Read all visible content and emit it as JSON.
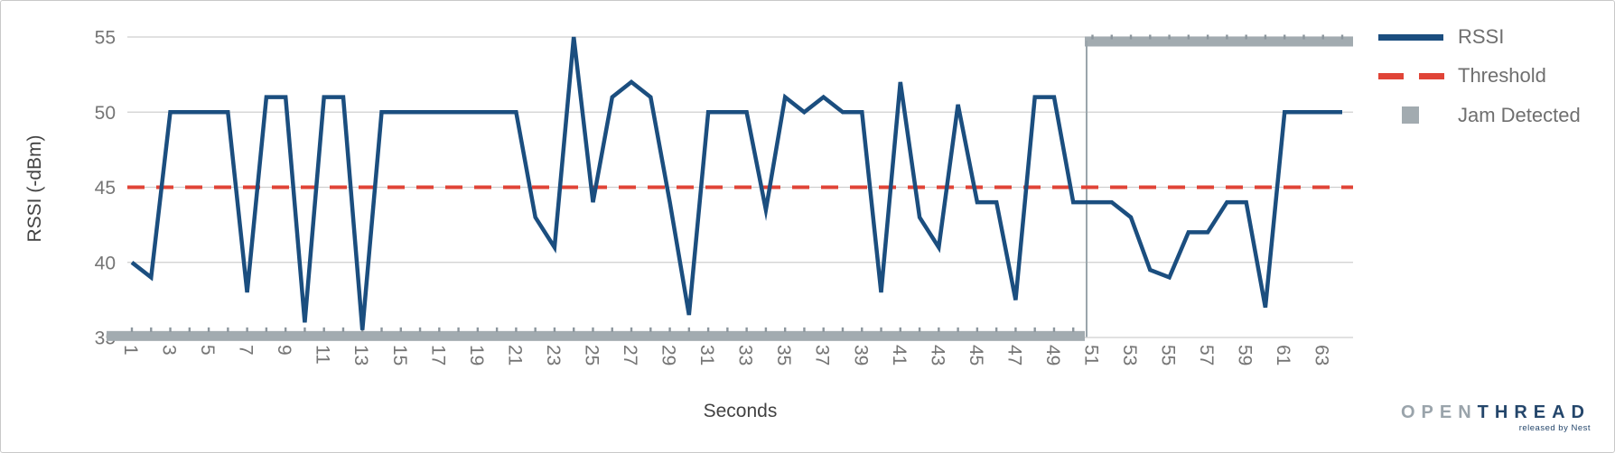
{
  "chart_data": {
    "type": "line",
    "xlabel": "Seconds",
    "ylabel": "RSSI (-dBm)",
    "ylim": [
      35,
      55
    ],
    "xlim": [
      1,
      64
    ],
    "grid": true,
    "y_ticks": [
      55,
      50,
      45,
      40,
      35
    ],
    "x_ticks": [
      1,
      3,
      5,
      7,
      9,
      11,
      13,
      15,
      17,
      19,
      21,
      23,
      25,
      27,
      29,
      31,
      33,
      35,
      37,
      39,
      41,
      43,
      45,
      47,
      49,
      51,
      53,
      55,
      57,
      59,
      61,
      63
    ],
    "series": [
      {
        "name": "RSSI",
        "type": "line",
        "color": "#1b4e7f",
        "x_start": 1,
        "x_step": 1,
        "values": [
          40,
          39,
          50,
          50,
          50,
          50,
          38,
          51,
          51,
          36,
          51,
          51,
          35.5,
          50,
          50,
          50,
          50,
          50,
          50,
          50,
          50,
          43,
          41,
          55,
          44,
          51,
          52,
          51,
          44,
          36.5,
          50,
          50,
          50,
          43.5,
          51,
          50,
          51,
          50,
          50,
          38,
          52,
          43,
          41,
          50.5,
          44,
          44,
          37.5,
          51,
          51,
          44,
          44,
          44,
          43,
          39.5,
          39,
          42,
          42,
          44,
          44,
          37,
          50,
          50,
          50,
          50
        ]
      },
      {
        "name": "Threshold",
        "type": "horizontal-dashed-line",
        "color": "#e04437",
        "value": 45
      },
      {
        "name": "Jam Detected",
        "type": "step-band",
        "color": "#a2abb0",
        "off_value": 35.1,
        "on_value": 54.7,
        "jam_on_from_second": 50.6,
        "jam_off_until_second": 50.6
      }
    ],
    "legend": {
      "position": "top-right",
      "entries": [
        {
          "label": "RSSI",
          "swatch": "line"
        },
        {
          "label": "Threshold",
          "swatch": "dashed"
        },
        {
          "label": "Jam Detected",
          "swatch": "square"
        }
      ]
    }
  },
  "colors": {
    "rssi_line": "#1b4e7f",
    "threshold_line": "#e04437",
    "jam_band": "#a2abb0",
    "jam_tick_notch": "#8c969d",
    "jam_connector": "#9aa5ab",
    "gridline": "#cfcfcf",
    "tick_text": "#757575",
    "axis_title_text": "#424242",
    "legend_text": "#6f6f6f"
  },
  "logo": {
    "open": "OPEN",
    "thread": "THREAD",
    "tagline": "released by Nest"
  }
}
